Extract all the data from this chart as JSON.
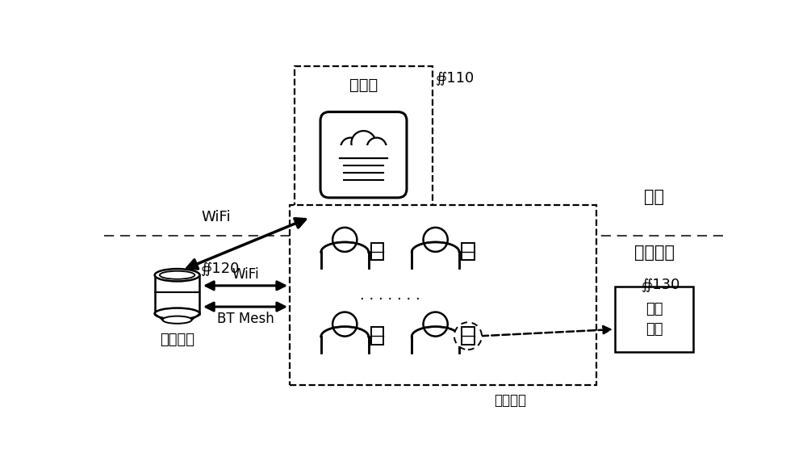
{
  "bg_color": "#ffffff",
  "line_color": "#000000",
  "fig_width": 10.0,
  "fig_height": 5.81,
  "labels": {
    "cloud_label": "云端",
    "scene_label": "会议现场",
    "server_label": "服务器",
    "server_id": "∯110",
    "audio_label": "语音设备",
    "audio_id": "∯120",
    "control_label": "控制\n设备",
    "control_id": "∯130",
    "attendee_label": "与会人员",
    "wifi_upper": "WiFi",
    "wifi_lower": "WiFi",
    "bt_mesh": "BT Mesh",
    "dots": "· · · · · · ·"
  }
}
